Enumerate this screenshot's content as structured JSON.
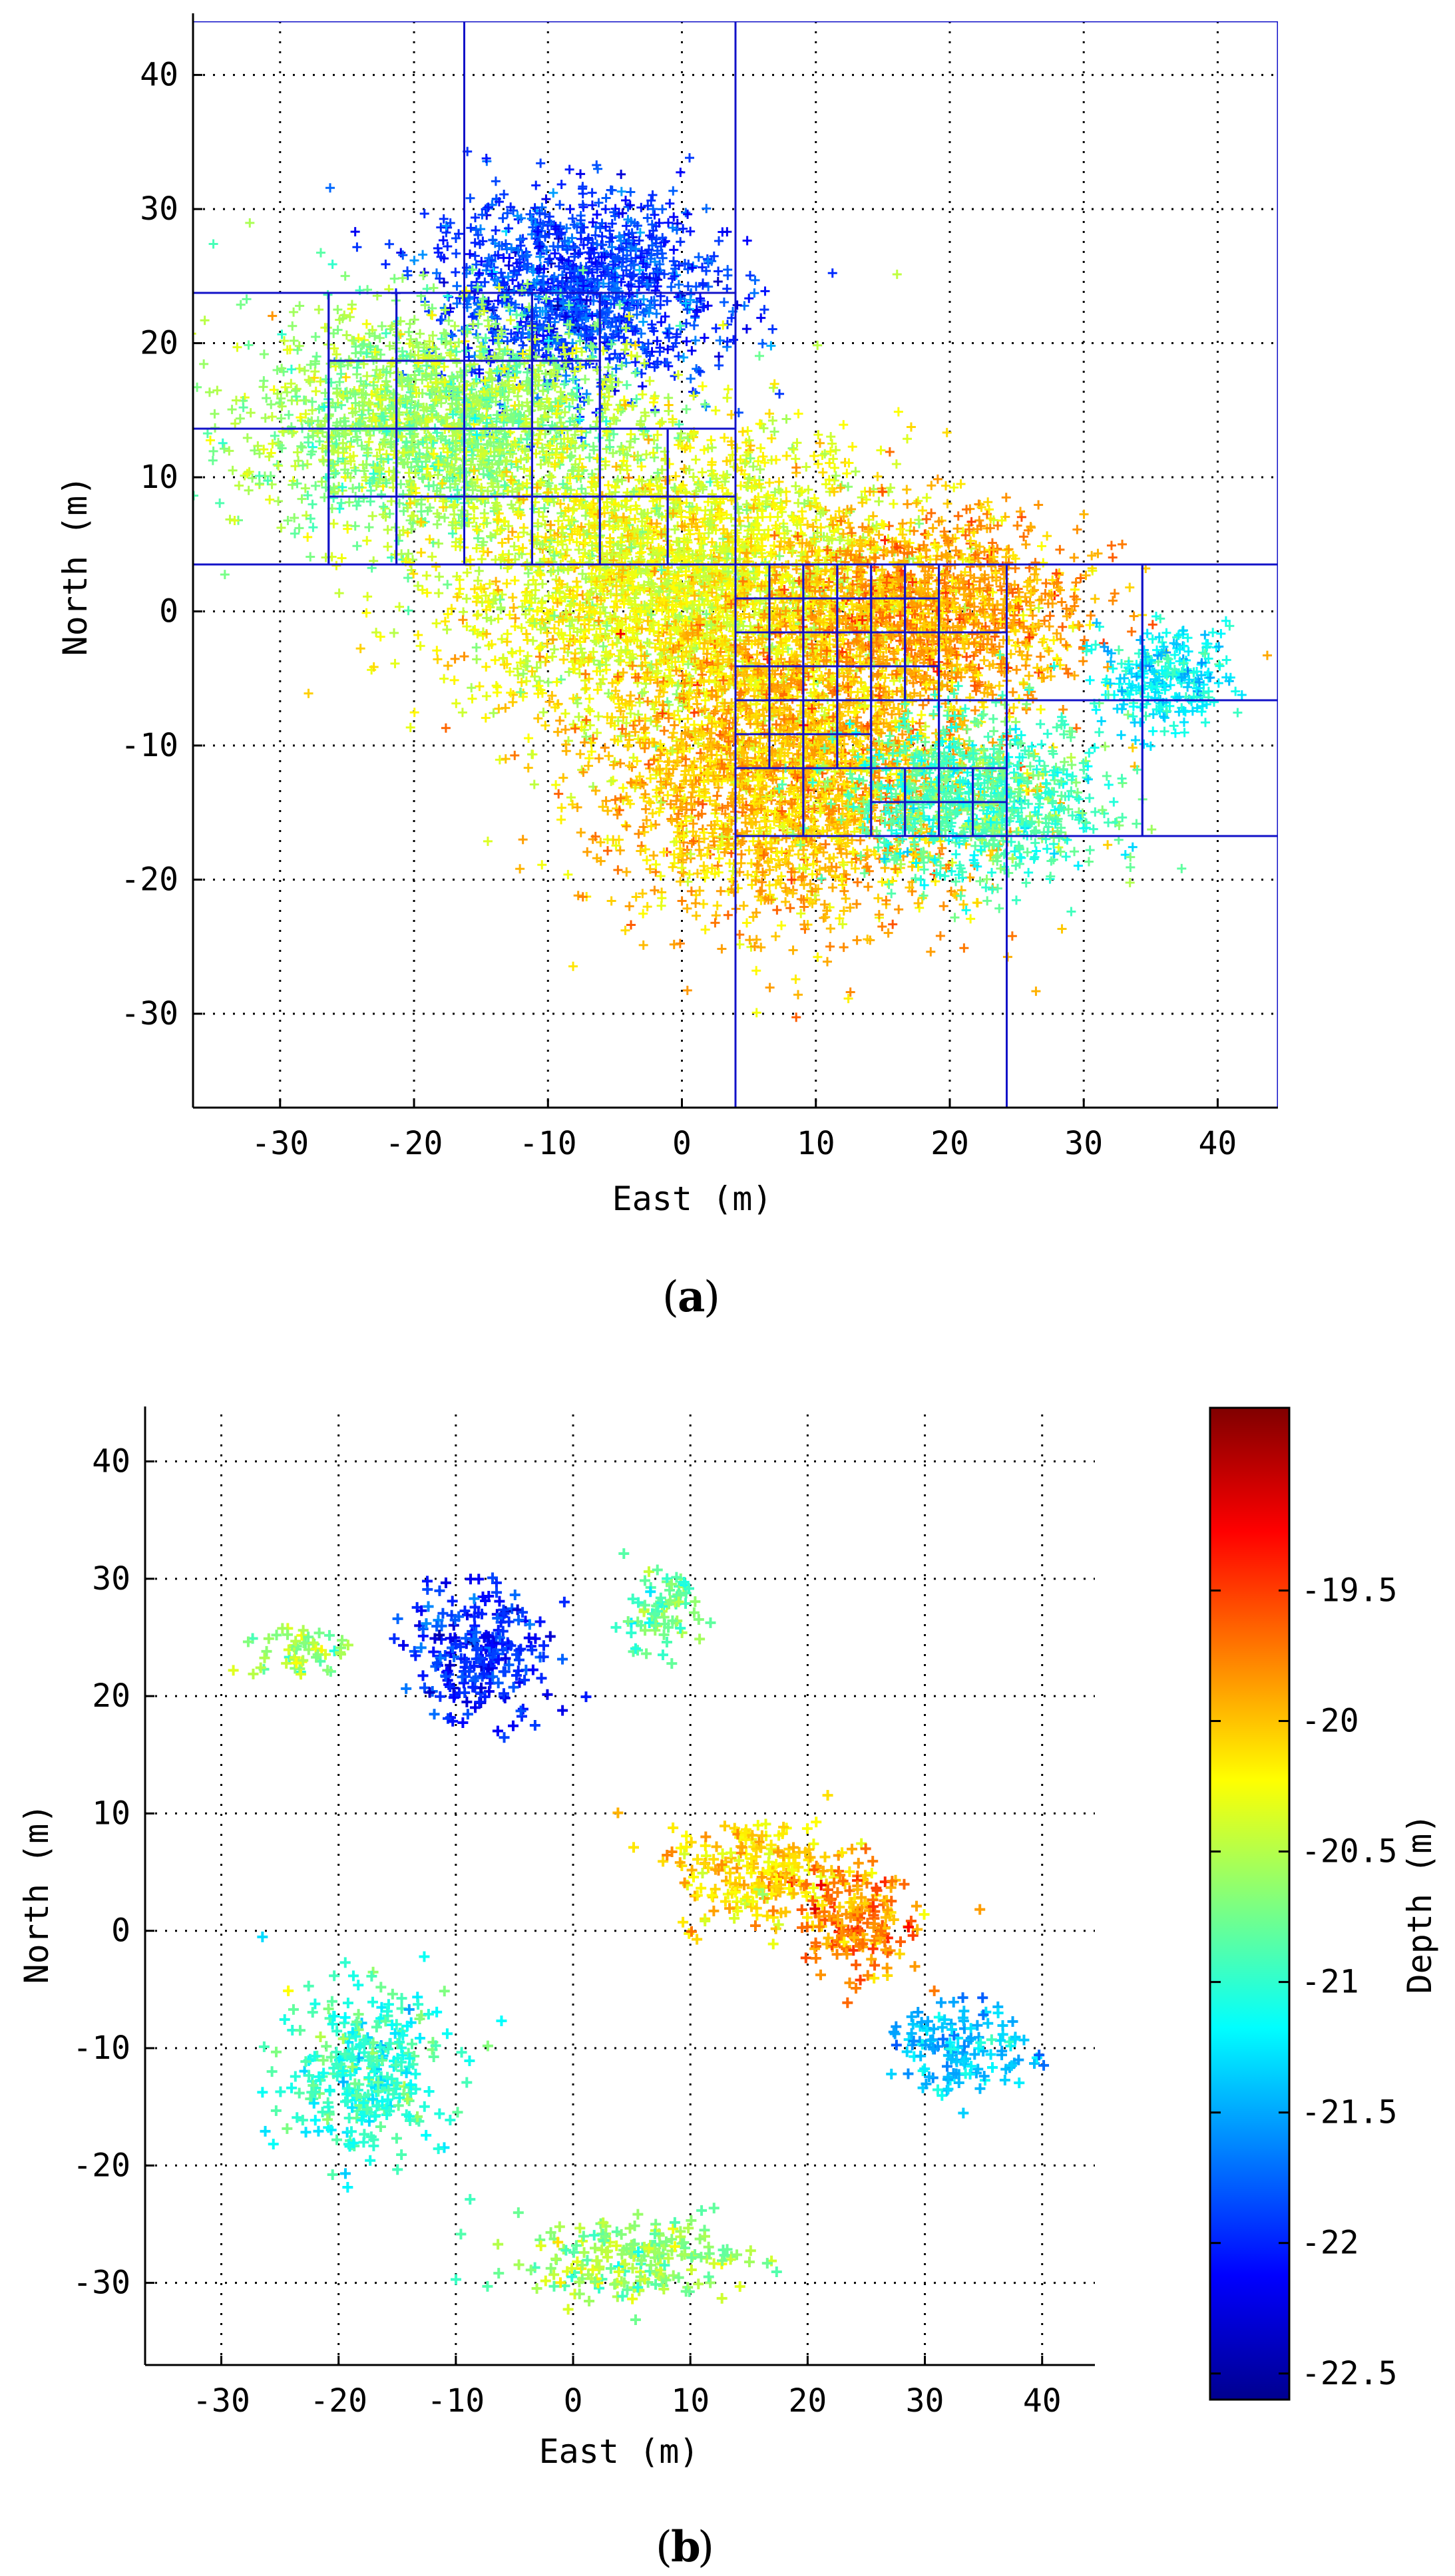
{
  "chart_data": [
    {
      "type": "scatter",
      "panel_label": "a",
      "xlabel": "East (m)",
      "ylabel": "North (m)",
      "xlim": [
        -36.5,
        44.5
      ],
      "ylim": [
        -37,
        44
      ],
      "xticks": [
        -30,
        -20,
        -10,
        0,
        10,
        20,
        30,
        40
      ],
      "yticks": [
        -30,
        -20,
        -10,
        0,
        10,
        20,
        30,
        40
      ],
      "grid": true,
      "colormap": "jet",
      "color_range": [
        -22.6,
        -18.8
      ],
      "overlay": "quadtree grid of blue rectangles partitioning the survey area",
      "overlay_color": "#1212c8",
      "point_clusters": [
        {
          "name": "north-west shallow-to-deep swath",
          "center": [
            -8,
            24
          ],
          "spread": [
            9,
            6
          ],
          "depth": -21.9
        },
        {
          "name": "western swath",
          "center": [
            -18,
            14
          ],
          "spread": [
            12,
            7
          ],
          "depth": -20.6
        },
        {
          "name": "central swath",
          "center": [
            0,
            2
          ],
          "spread": [
            14,
            9
          ],
          "depth": -20.3
        },
        {
          "name": "south-central swath",
          "center": [
            8,
            -12
          ],
          "spread": [
            12,
            9
          ],
          "depth": -20.0
        },
        {
          "name": "eastern ridge",
          "center": [
            18,
            0
          ],
          "spread": [
            10,
            6
          ],
          "depth": -19.9
        },
        {
          "name": "south-east swath",
          "center": [
            22,
            -14
          ],
          "spread": [
            8,
            5
          ],
          "depth": -20.9
        },
        {
          "name": "far east tail",
          "center": [
            36,
            -5
          ],
          "spread": [
            4,
            3
          ],
          "depth": -21.2
        }
      ]
    },
    {
      "type": "scatter",
      "panel_label": "b",
      "xlabel": "East (m)",
      "ylabel": "North (m)",
      "xlim": [
        -36.5,
        44.5
      ],
      "ylim": [
        -37,
        44
      ],
      "xticks": [
        -30,
        -20,
        -10,
        0,
        10,
        20,
        30,
        40
      ],
      "yticks": [
        -30,
        -20,
        -10,
        0,
        10,
        20,
        30,
        40
      ],
      "grid": true,
      "colormap": "jet",
      "color_range": [
        -22.6,
        -18.8
      ],
      "colorbar": {
        "label": "Depth (m)",
        "ticks": [
          -19.5,
          -20,
          -20.5,
          -21,
          -21.5,
          -22,
          -22.5
        ],
        "tick_labels": [
          "-19.5",
          "-20",
          "-20.5",
          "-21",
          "-21.5",
          "-22",
          "-22.5"
        ]
      },
      "point_clusters": [
        {
          "name": "deep north-west cluster",
          "center": [
            -8,
            24
          ],
          "spread": [
            5,
            5
          ],
          "depth": -22.0
        },
        {
          "name": "north-east sparse",
          "center": [
            7,
            27
          ],
          "spread": [
            3,
            3
          ],
          "depth": -20.8
        },
        {
          "name": "far north-west sparse",
          "center": [
            -23,
            24
          ],
          "spread": [
            3,
            2
          ],
          "depth": -20.6
        },
        {
          "name": "central-east shallow cluster",
          "center": [
            16,
            5
          ],
          "spread": [
            6,
            4
          ],
          "depth": -20.1
        },
        {
          "name": "eastern ridge",
          "center": [
            24,
            1
          ],
          "spread": [
            5,
            4
          ],
          "depth": -19.8
        },
        {
          "name": "south-east deep tail",
          "center": [
            33,
            -10
          ],
          "spread": [
            5,
            3
          ],
          "depth": -21.4
        },
        {
          "name": "southern sparse",
          "center": [
            5,
            -28
          ],
          "spread": [
            8,
            3
          ],
          "depth": -20.6
        },
        {
          "name": "west sparse",
          "center": [
            -18,
            -12
          ],
          "spread": [
            6,
            6
          ],
          "depth": -21.0
        }
      ]
    }
  ]
}
